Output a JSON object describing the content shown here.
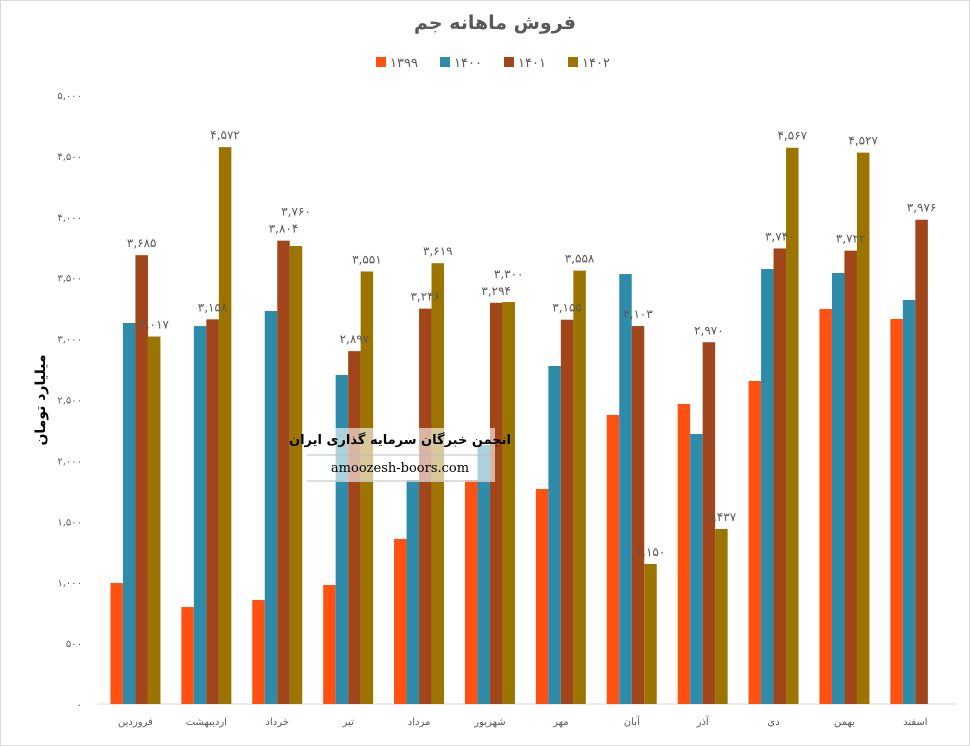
{
  "chart_data": {
    "type": "bar",
    "title": "فروش ماهانه جم",
    "ylabel": "میلیارد تومان",
    "xlabel": "",
    "ylim": [
      0,
      5000
    ],
    "ytick_step": 500,
    "ytick_labels": [
      "۰",
      "۵۰۰",
      "۱,۰۰۰",
      "۱,۵۰۰",
      "۲,۰۰۰",
      "۲,۵۰۰",
      "۳,۰۰۰",
      "۳,۵۰۰",
      "۴,۰۰۰",
      "۴,۵۰۰",
      "۵,۰۰۰"
    ],
    "grid": false,
    "legend_position": "top",
    "categories": [
      "فروردین",
      "اردیبهشت",
      "خرداد",
      "تیر",
      "مرداد",
      "شهریور",
      "مهر",
      "آبان",
      "آذر",
      "دی",
      "بهمن",
      "اسفند"
    ],
    "series": [
      {
        "name": "۱۳۹۹",
        "color": "#FF5212",
        "values": [
          993,
          796,
          854,
          977,
          1355,
          1839,
          1765,
          2373,
          2463,
          2652,
          3243,
          3161
        ],
        "labels": null
      },
      {
        "name": "۱۴۰۰",
        "color": "#2E8CAA",
        "values": [
          3128,
          3103,
          3227,
          2701,
          1839,
          2126,
          2775,
          3530,
          2217,
          3571,
          3539,
          3317
        ],
        "labels": null
      },
      {
        "name": "۱۴۰۱",
        "color": "#A0461A",
        "values": [
          3685,
          3158,
          3804,
          2897,
          3246,
          3294,
          3155,
          3103,
          2970,
          3740,
          3722,
          3976
        ],
        "labels": [
          "۳,۶۸۵",
          "۳,۱۵۸",
          "۳,۸۰۴",
          "۲,۸۹۷",
          "۳,۲۴۶",
          "۳,۲۹۴",
          "۳,۱۵۵",
          "۳,۱۰۳",
          "۲,۹۷۰",
          "۳,۷۴۰",
          "۳,۷۲۲",
          "۳,۹۷۶"
        ]
      },
      {
        "name": "۱۴۰۲",
        "color": "#9C7400",
        "values": [
          3017,
          4572,
          3760,
          3551,
          3619,
          3300,
          3558,
          1150,
          1437,
          4567,
          4527,
          null
        ],
        "labels": [
          "۳,۰۱۷",
          "۴,۵۷۲",
          "۳,۷۶۰",
          "۳,۵۵۱",
          "۳,۶۱۹",
          "۳,۳۰۰",
          "۳,۵۵۸",
          "۱,۱۵۰",
          "۱,۴۳۷",
          "۴,۵۶۷",
          "۴,۵۲۷",
          null
        ]
      }
    ]
  },
  "watermark": {
    "line1": "انجمن خبرگان سرمایه گذاری ایران",
    "line2": "amoozesh-boors.com"
  }
}
